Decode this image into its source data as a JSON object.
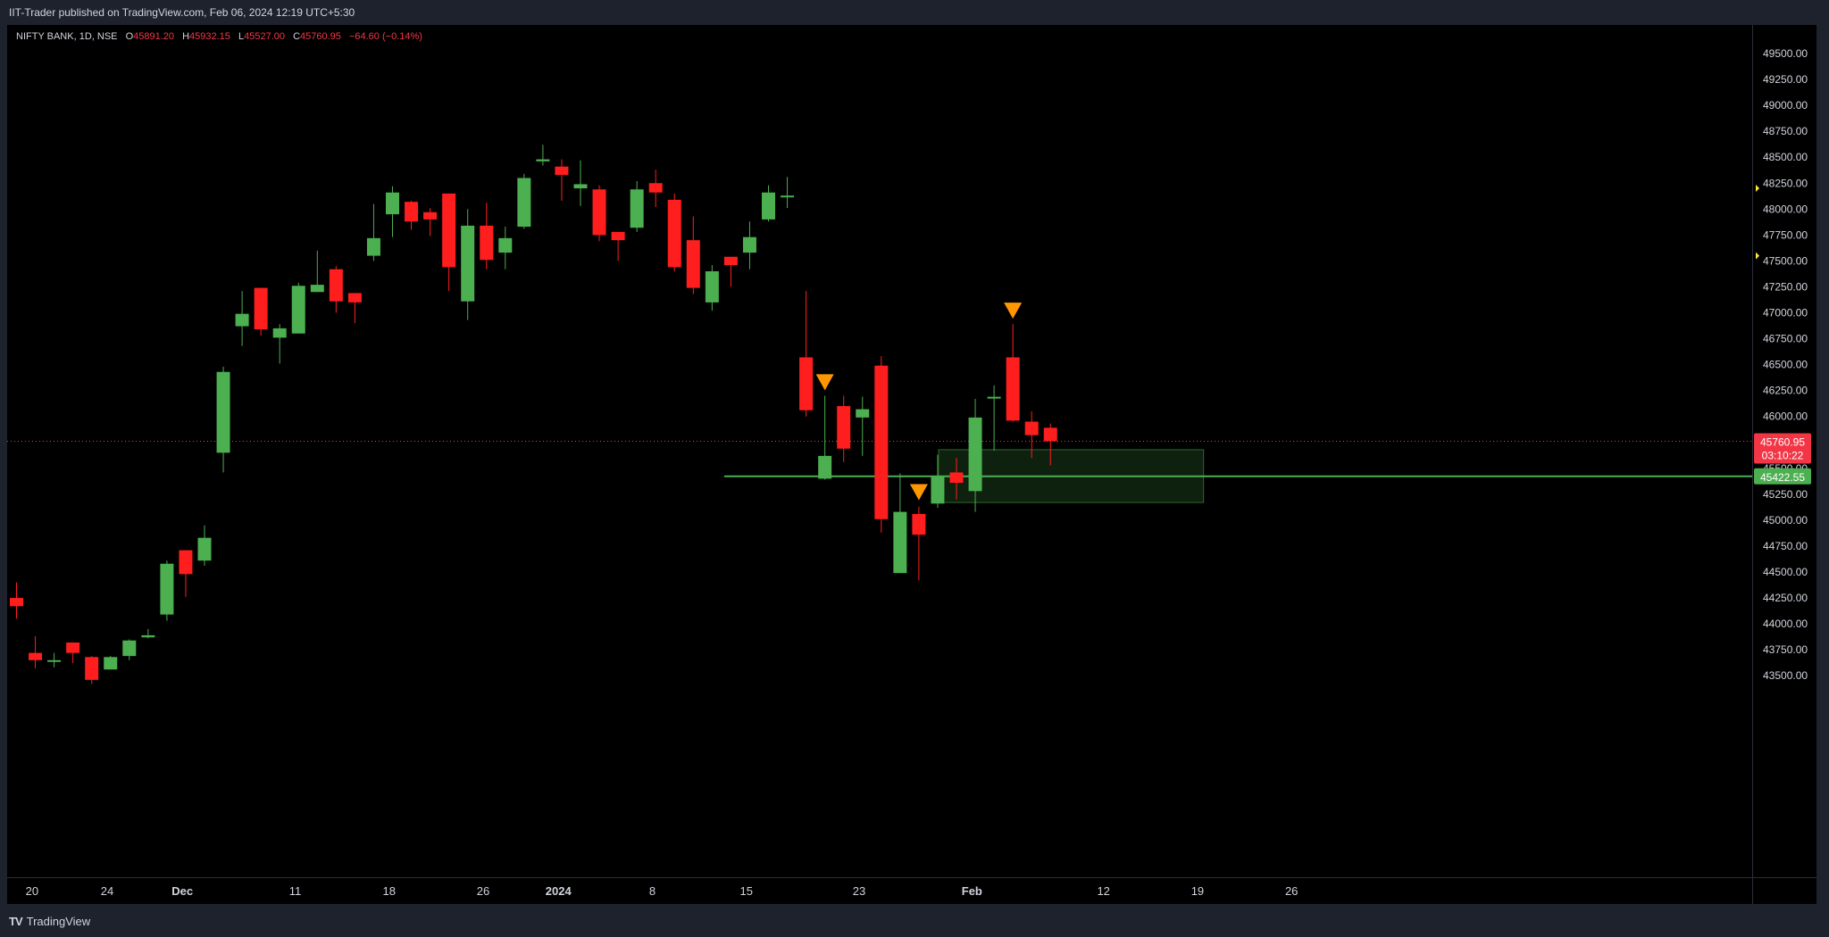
{
  "header": {
    "published_text": "IIT-Trader published on TradingView.com, Feb 06, 2024 12:19 UTC+5:30"
  },
  "legend": {
    "symbol": "NIFTY BANK, 1D, NSE",
    "o_label": "O",
    "o_value": "45891.20",
    "h_label": "H",
    "h_value": "45932.15",
    "l_label": "L",
    "l_value": "45527.00",
    "c_label": "C",
    "c_value": "45760.95",
    "change": "−64.60 (−0.14%)"
  },
  "footer": {
    "logo_text": "TradingView"
  },
  "colors": {
    "up": "#4caf50",
    "down": "#ff1e1e",
    "background": "#000000",
    "last_price": "#f23645",
    "level": "#4caf50",
    "marker": "#ff9800"
  },
  "chart_data": {
    "type": "candlestick",
    "symbol": "NIFTY BANK",
    "interval": "1D",
    "exchange": "NSE",
    "ylim": [
      43300,
      49700
    ],
    "y_ticks": [
      "49500.00",
      "49250.00",
      "49000.00",
      "48750.00",
      "48500.00",
      "48250.00",
      "48000.00",
      "47750.00",
      "47500.00",
      "47250.00",
      "47000.00",
      "46750.00",
      "46500.00",
      "46250.00",
      "46000.00",
      "45750.00",
      "45500.00",
      "45250.00",
      "45000.00",
      "44750.00",
      "44500.00",
      "44250.00",
      "44000.00",
      "43750.00",
      "43500.00"
    ],
    "x_ticks": [
      {
        "label": "20",
        "bar": 0.8
      },
      {
        "label": "24",
        "bar": 4.8
      },
      {
        "label": "Dec",
        "bar": 8.8
      },
      {
        "label": "11",
        "bar": 14.8
      },
      {
        "label": "18",
        "bar": 19.8
      },
      {
        "label": "26",
        "bar": 24.8
      },
      {
        "label": "2024",
        "bar": 28.8
      },
      {
        "label": "8",
        "bar": 33.8
      },
      {
        "label": "15",
        "bar": 38.8
      },
      {
        "label": "23",
        "bar": 44.8
      },
      {
        "label": "Feb",
        "bar": 50.8
      },
      {
        "label": "12",
        "bar": 57.8
      },
      {
        "label": "19",
        "bar": 62.8
      },
      {
        "label": "26",
        "bar": 67.8
      }
    ],
    "candles": [
      {
        "o": 44250,
        "h": 44400,
        "l": 44050,
        "c": 44170
      },
      {
        "o": 43720,
        "h": 43880,
        "l": 43570,
        "c": 43650
      },
      {
        "o": 43650,
        "h": 43720,
        "l": 43580,
        "c": 43650
      },
      {
        "o": 43820,
        "h": 43820,
        "l": 43620,
        "c": 43720
      },
      {
        "o": 43680,
        "h": 43690,
        "l": 43420,
        "c": 43460
      },
      {
        "o": 43560,
        "h": 43690,
        "l": 43560,
        "c": 43680
      },
      {
        "o": 43690,
        "h": 43850,
        "l": 43650,
        "c": 43840
      },
      {
        "o": 43870,
        "h": 43950,
        "l": 43860,
        "c": 43890
      },
      {
        "o": 44090,
        "h": 44610,
        "l": 44030,
        "c": 44580
      },
      {
        "o": 44710,
        "h": 44710,
        "l": 44260,
        "c": 44480
      },
      {
        "o": 44610,
        "h": 44950,
        "l": 44560,
        "c": 44830
      },
      {
        "o": 45650,
        "h": 46480,
        "l": 45460,
        "c": 46430
      },
      {
        "o": 46870,
        "h": 47210,
        "l": 46680,
        "c": 46990
      },
      {
        "o": 47240,
        "h": 47240,
        "l": 46780,
        "c": 46840
      },
      {
        "o": 46760,
        "h": 46890,
        "l": 46510,
        "c": 46850
      },
      {
        "o": 46800,
        "h": 47290,
        "l": 46800,
        "c": 47260
      },
      {
        "o": 47200,
        "h": 47600,
        "l": 47200,
        "c": 47270
      },
      {
        "o": 47420,
        "h": 47450,
        "l": 47000,
        "c": 47110
      },
      {
        "o": 47190,
        "h": 47190,
        "l": 46900,
        "c": 47100
      },
      {
        "o": 47550,
        "h": 48050,
        "l": 47500,
        "c": 47720
      },
      {
        "o": 47950,
        "h": 48220,
        "l": 47730,
        "c": 48160
      },
      {
        "o": 48070,
        "h": 48080,
        "l": 47800,
        "c": 47880
      },
      {
        "o": 47970,
        "h": 48010,
        "l": 47740,
        "c": 47900
      },
      {
        "o": 48150,
        "h": 48150,
        "l": 47210,
        "c": 47440
      },
      {
        "o": 47110,
        "h": 48000,
        "l": 46930,
        "c": 47840
      },
      {
        "o": 47840,
        "h": 48060,
        "l": 47420,
        "c": 47510
      },
      {
        "o": 47580,
        "h": 47830,
        "l": 47420,
        "c": 47720
      },
      {
        "o": 47830,
        "h": 48340,
        "l": 47810,
        "c": 48300
      },
      {
        "o": 48460,
        "h": 48620,
        "l": 48420,
        "c": 48480
      },
      {
        "o": 48410,
        "h": 48480,
        "l": 48080,
        "c": 48330
      },
      {
        "o": 48200,
        "h": 48470,
        "l": 48030,
        "c": 48240
      },
      {
        "o": 48190,
        "h": 48230,
        "l": 47690,
        "c": 47750
      },
      {
        "o": 47780,
        "h": 47780,
        "l": 47500,
        "c": 47700
      },
      {
        "o": 47820,
        "h": 48270,
        "l": 47780,
        "c": 48190
      },
      {
        "o": 48250,
        "h": 48380,
        "l": 48020,
        "c": 48160
      },
      {
        "o": 48090,
        "h": 48150,
        "l": 47400,
        "c": 47440
      },
      {
        "o": 47700,
        "h": 47930,
        "l": 47180,
        "c": 47240
      },
      {
        "o": 47100,
        "h": 47460,
        "l": 47020,
        "c": 47400
      },
      {
        "o": 47540,
        "h": 47540,
        "l": 47250,
        "c": 47460
      },
      {
        "o": 47580,
        "h": 47880,
        "l": 47420,
        "c": 47730
      },
      {
        "o": 47900,
        "h": 48230,
        "l": 47880,
        "c": 48160
      },
      {
        "o": 48120,
        "h": 48310,
        "l": 48010,
        "c": 48130
      },
      {
        "o": 46570,
        "h": 47210,
        "l": 46000,
        "c": 46060
      },
      {
        "o": 45400,
        "h": 46200,
        "l": 45390,
        "c": 45620
      },
      {
        "o": 46100,
        "h": 46200,
        "l": 45560,
        "c": 45690
      },
      {
        "o": 45990,
        "h": 46190,
        "l": 45620,
        "c": 46070
      },
      {
        "o": 46490,
        "h": 46580,
        "l": 44880,
        "c": 45010
      },
      {
        "o": 44490,
        "h": 45450,
        "l": 44490,
        "c": 45080
      },
      {
        "o": 45060,
        "h": 45130,
        "l": 44420,
        "c": 44860
      },
      {
        "o": 45160,
        "h": 45630,
        "l": 45120,
        "c": 45420
      },
      {
        "o": 45460,
        "h": 45600,
        "l": 45200,
        "c": 45360
      },
      {
        "o": 45280,
        "h": 46170,
        "l": 45080,
        "c": 45990
      },
      {
        "o": 46180,
        "h": 46300,
        "l": 45670,
        "c": 46190
      },
      {
        "o": 46570,
        "h": 46890,
        "l": 45950,
        "c": 45960
      },
      {
        "o": 45950,
        "h": 46050,
        "l": 45600,
        "c": 45820
      },
      {
        "o": 45891.2,
        "h": 45932.15,
        "l": 45527,
        "c": 45760.95
      }
    ],
    "markers": [
      {
        "bar": 43,
        "price": 46330
      },
      {
        "bar": 48,
        "price": 45270
      },
      {
        "bar": 53,
        "price": 47020
      }
    ],
    "horizontal_level": {
      "price": 45422.55,
      "from_bar": 38
    },
    "rectangle": {
      "from_bar": 49.4,
      "to_bar": 63.5,
      "top": 45680,
      "bottom": 45170
    },
    "last_price": {
      "value": "45760.95",
      "countdown": "03:10:22"
    },
    "level_label": "45422.55"
  }
}
